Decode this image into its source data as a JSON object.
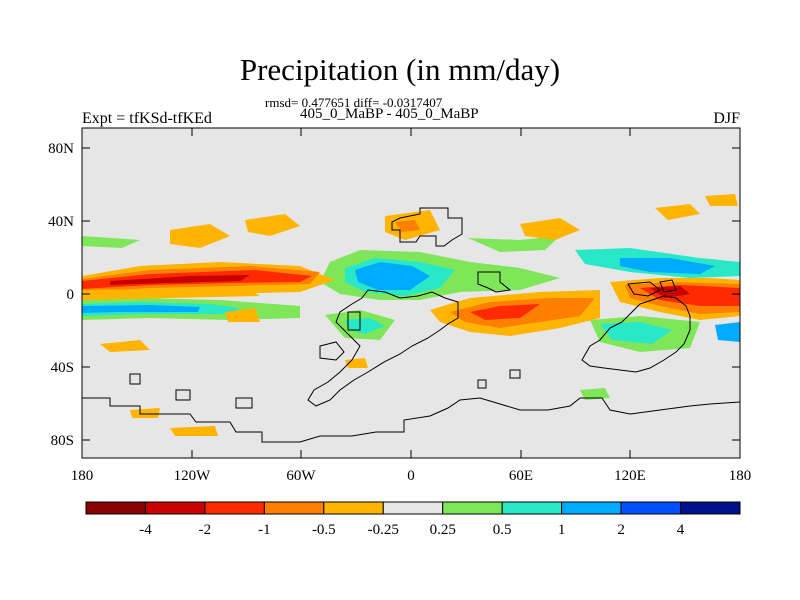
{
  "header": {
    "title": "Precipitation (in mm/day)",
    "stats": "rmsd= 0.477651 diff= -0.0317407",
    "experiment": "Expt = tfKSd-tfKEd",
    "case": "405_0_MaBP - 405_0_MaBP",
    "season": "DJF"
  },
  "map": {
    "lat_ticks": [
      "80N",
      "40N",
      "0",
      "40S",
      "80S"
    ],
    "lon_ticks": [
      "180",
      "120W",
      "60W",
      "0",
      "60E",
      "120E",
      "180"
    ],
    "background_color": "#e6e6e6"
  },
  "colorbar": {
    "colors": [
      "#8b0000",
      "#c80000",
      "#ff2a00",
      "#ff7f00",
      "#ffb400",
      "#e6e6e6",
      "#7fe65a",
      "#28e8c8",
      "#00aaff",
      "#0050ff",
      "#000f8c"
    ],
    "labels": [
      "-4",
      "-2",
      "-1",
      "-0.5",
      "-0.25",
      "0.25",
      "0.5",
      "1",
      "2",
      "4"
    ]
  },
  "chart_data": {
    "type": "heatmap",
    "title": "Precipitation (in mm/day)",
    "subtitle": "rmsd= 0.477651 diff= -0.0317407",
    "variable": "Precipitation difference",
    "units": "mm/day",
    "x_range": [
      -180,
      180
    ],
    "y_range": [
      -90,
      90
    ],
    "levels": [
      -4,
      -2,
      -1,
      -0.5,
      -0.25,
      0.25,
      0.5,
      1,
      2,
      4
    ],
    "approx_features": [
      {
        "region": "Pacific equatorial band 180-130W, 5S-8N",
        "value": -2
      },
      {
        "region": "Pacific equatorial band 180-125W, 5S-8N",
        "value": -1
      },
      {
        "region": "South Pacific band 180-120W, 12S-5S",
        "value": 0.5
      },
      {
        "region": "Tropical Atlantic/Africa 30W-20E, 5S-15N",
        "value": 1
      },
      {
        "region": "Indian Ocean 20E-70E, 20S-5S",
        "value": -1
      },
      {
        "region": "Western Pacific 120E-180, 2S-10N",
        "value": -2
      },
      {
        "region": "NW Pacific 100E-150E, 10N-15N",
        "value": 1
      },
      {
        "region": "Northern midlatitudes 40N",
        "value": -0.5
      }
    ]
  }
}
